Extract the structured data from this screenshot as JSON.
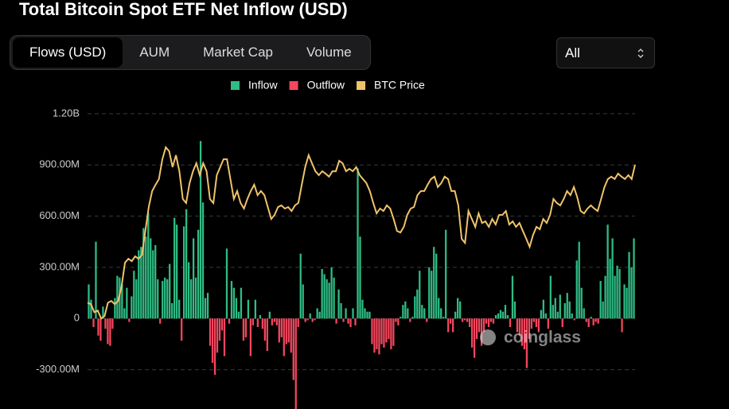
{
  "header": {
    "title": "Total Bitcoin Spot ETF Net Inflow (USD)"
  },
  "tabs": [
    "Flows (USD)",
    "AUM",
    "Market Cap",
    "Volume"
  ],
  "active_tab": 0,
  "range_select": "All",
  "chart_data": {
    "type": "bar",
    "legend": [
      {
        "name": "Inflow",
        "color": "#2ebd85"
      },
      {
        "name": "Outflow",
        "color": "#f6465d"
      },
      {
        "name": "BTC Price",
        "color": "#f0c36b"
      }
    ],
    "watermark": "coinglass",
    "ylim": [
      -530,
      1260
    ],
    "yticks": [
      {
        "value": -300,
        "label": "-300.00M"
      },
      0,
      {
        "value": 300,
        "label": "300.00M"
      },
      {
        "value": 600,
        "label": "600.00M"
      },
      {
        "value": 900,
        "label": "900.00M"
      },
      {
        "value": 1200,
        "label": "1.20B"
      }
    ],
    "grid": true,
    "values": [
      200,
      110,
      -50,
      450,
      -100,
      -130,
      70,
      -60,
      -150,
      -160,
      -60,
      120,
      250,
      240,
      200,
      60,
      180,
      -20,
      130,
      280,
      230,
      400,
      420,
      530,
      480,
      620,
      470,
      400,
      430,
      230,
      -30,
      220,
      240,
      230,
      320,
      90,
      590,
      550,
      110,
      -130,
      540,
      640,
      330,
      230,
      470,
      240,
      520,
      1040,
      680,
      120,
      150,
      -160,
      -260,
      -330,
      -200,
      -130,
      -70,
      -220,
      410,
      -30,
      220,
      180,
      120,
      40,
      180,
      -130,
      -110,
      110,
      -220,
      -40,
      110,
      -50,
      20,
      -60,
      -130,
      -190,
      40,
      -40,
      -20,
      -40,
      -140,
      -110,
      -220,
      -150,
      -140,
      -200,
      -360,
      -530,
      -50,
      380,
      200,
      -20,
      -10,
      30,
      -20,
      -10,
      60,
      40,
      290,
      260,
      230,
      210,
      300,
      240,
      -30,
      170,
      90,
      -20,
      60,
      -30,
      -50,
      60,
      -40,
      880,
      480,
      110,
      60,
      40,
      40,
      -150,
      -200,
      -180,
      -210,
      -150,
      -170,
      -140,
      -120,
      -180,
      -160,
      -20,
      -40,
      10,
      80,
      100,
      60,
      -20,
      10,
      130,
      170,
      280,
      80,
      60,
      -20,
      300,
      280,
      420,
      380,
      120,
      60,
      10,
      520,
      -80,
      -30,
      -80,
      40,
      120,
      100,
      -20,
      -10,
      -20,
      -50,
      -170,
      -230,
      -120,
      -80,
      -160,
      -80,
      -30,
      -50,
      -20,
      -30,
      20,
      30,
      50,
      40,
      80,
      20,
      -50,
      250,
      100,
      -80,
      -100,
      -160,
      -180,
      -290,
      -120,
      -60,
      -20,
      -50,
      -80,
      50,
      110,
      30,
      -60,
      250,
      80,
      120,
      40,
      140,
      -50,
      90,
      150,
      100,
      30,
      -10,
      340,
      450,
      180,
      60,
      -20,
      -50,
      10,
      -40,
      -20,
      -30,
      220,
      100,
      250,
      550,
      350,
      470,
      250,
      310,
      290,
      -80,
      200,
      180,
      390,
      300,
      470
    ],
    "price_values": [
      93,
      84,
      37,
      47,
      0,
      14,
      93,
      103,
      84,
      103,
      187,
      327,
      350,
      336,
      364,
      350,
      373,
      513,
      653,
      747,
      784,
      817,
      933,
      1003,
      980,
      887,
      957,
      863,
      700,
      677,
      793,
      863,
      910,
      840,
      910,
      863,
      700,
      677,
      840,
      887,
      933,
      933,
      817,
      700,
      747,
      677,
      644,
      700,
      747,
      784,
      723,
      747,
      723,
      653,
      583,
      607,
      653,
      663,
      644,
      653,
      630,
      663,
      677,
      784,
      887,
      957,
      910,
      863,
      840,
      863,
      849,
      831,
      863,
      863,
      924,
      910,
      863,
      877,
      863,
      887,
      840,
      817,
      793,
      747,
      677,
      616,
      644,
      630,
      663,
      644,
      583,
      513,
      504,
      537,
      607,
      644,
      653,
      723,
      747,
      747,
      784,
      817,
      831,
      770,
      793,
      831,
      817,
      747,
      747,
      663,
      467,
      443,
      630,
      583,
      537,
      616,
      560,
      569,
      537,
      583,
      551,
      607,
      607,
      630,
      551,
      569,
      537,
      560,
      513,
      467,
      420,
      490,
      537,
      523,
      583,
      560,
      607,
      700,
      677,
      663,
      700,
      747,
      723,
      770,
      709,
      630,
      616,
      644,
      663,
      644,
      630,
      700,
      770,
      817,
      831,
      817,
      849,
      831,
      817,
      840,
      817,
      901
    ]
  }
}
